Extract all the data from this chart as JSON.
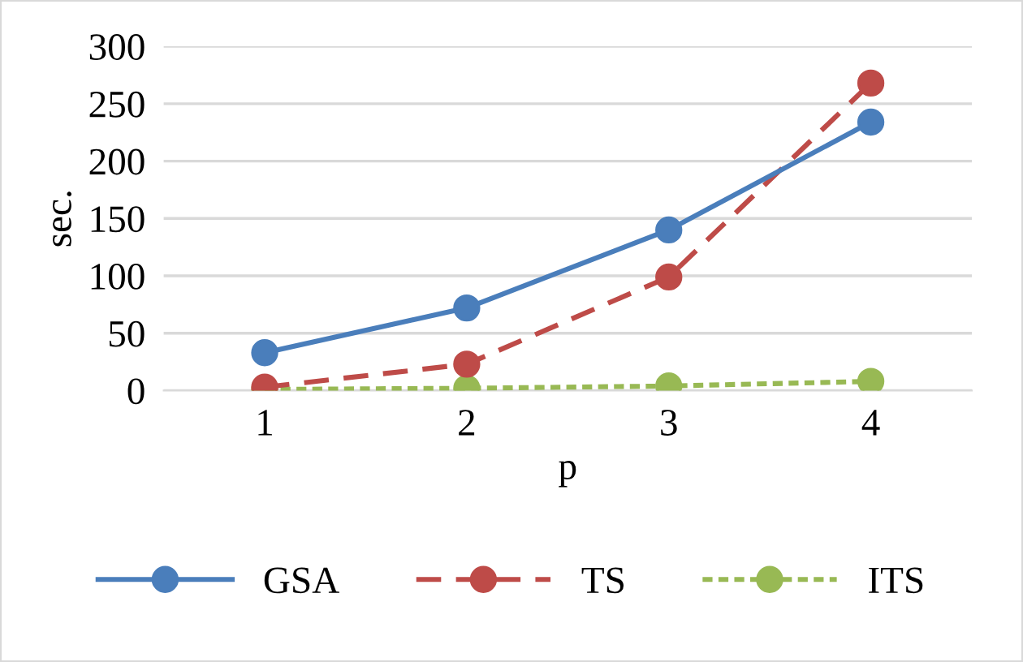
{
  "chart_data": {
    "type": "line",
    "xlabel": "p",
    "ylabel": "sec.",
    "categories": [
      "1",
      "2",
      "3",
      "4"
    ],
    "series": [
      {
        "name": "GSA",
        "color": "#4a7ebb",
        "values": [
          33,
          72,
          140,
          234
        ],
        "line_style": "solid"
      },
      {
        "name": "TS",
        "color": "#be4b48",
        "values": [
          3,
          23,
          99,
          268
        ],
        "line_style": "dashed"
      },
      {
        "name": "ITS",
        "color": "#98b954",
        "values": [
          1,
          2,
          4,
          8
        ],
        "line_style": "dotted"
      }
    ],
    "ylim": [
      0,
      300
    ],
    "yticks": [
      0,
      50,
      100,
      150,
      200,
      250,
      300
    ],
    "grid": "y",
    "legend": "bottom",
    "marker": "circle"
  }
}
